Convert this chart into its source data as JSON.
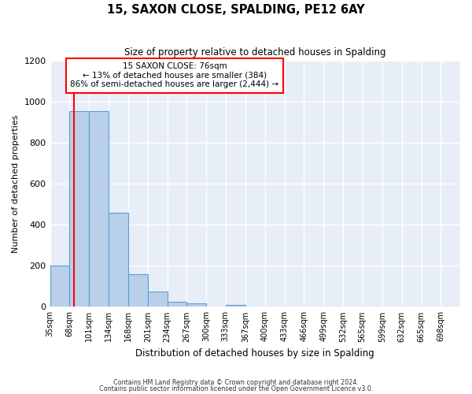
{
  "title": "15, SAXON CLOSE, SPALDING, PE12 6AY",
  "subtitle": "Size of property relative to detached houses in Spalding",
  "xlabel": "Distribution of detached houses by size in Spalding",
  "ylabel": "Number of detached properties",
  "bar_labels": [
    "35sqm",
    "68sqm",
    "101sqm",
    "134sqm",
    "168sqm",
    "201sqm",
    "234sqm",
    "267sqm",
    "300sqm",
    "333sqm",
    "367sqm",
    "400sqm",
    "433sqm",
    "466sqm",
    "499sqm",
    "532sqm",
    "565sqm",
    "599sqm",
    "632sqm",
    "665sqm",
    "698sqm"
  ],
  "bar_values": [
    200,
    955,
    955,
    460,
    160,
    75,
    25,
    18,
    0,
    10,
    0,
    0,
    0,
    0,
    0,
    0,
    0,
    0,
    0,
    0,
    0
  ],
  "bar_color": "#b8d0ea",
  "bar_edge_color": "#5a9fd4",
  "vline_color": "red",
  "annotation_title": "15 SAXON CLOSE: 76sqm",
  "annotation_line1": "← 13% of detached houses are smaller (384)",
  "annotation_line2": "86% of semi-detached houses are larger (2,444) →",
  "annotation_box_color": "white",
  "annotation_box_edge_color": "red",
  "ylim": [
    0,
    1200
  ],
  "yticks": [
    0,
    200,
    400,
    600,
    800,
    1000,
    1200
  ],
  "footer1": "Contains HM Land Registry data © Crown copyright and database right 2024.",
  "footer2": "Contains public sector information licensed under the Open Government Licence v3.0.",
  "bin_edges": [
    35,
    68,
    101,
    134,
    168,
    201,
    234,
    267,
    300,
    333,
    367,
    400,
    433,
    466,
    499,
    532,
    565,
    599,
    632,
    665,
    698,
    731
  ],
  "vline_x_bin": 1,
  "bg_color": "#e8eef8"
}
